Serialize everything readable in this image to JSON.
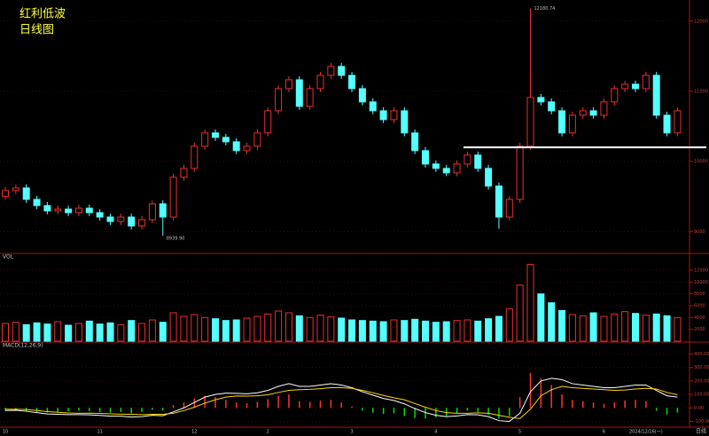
{
  "chart_data": {
    "type": "candlestick",
    "title": "红利低波",
    "subtitle": "日线图",
    "categories": [
      "10",
      null,
      null,
      null,
      null,
      null,
      null,
      null,
      null,
      "11",
      null,
      null,
      null,
      null,
      null,
      null,
      null,
      null,
      "12",
      null,
      null,
      null,
      null,
      null,
      null,
      "2",
      null,
      null,
      null,
      null,
      null,
      null,
      null,
      "3",
      null,
      null,
      null,
      null,
      null,
      null,
      null,
      "4",
      null,
      null,
      null,
      null,
      null,
      null,
      null,
      "5",
      null,
      null,
      null,
      null,
      null,
      null,
      null,
      "6",
      null,
      null,
      null,
      "2024/12/16(一)",
      null,
      null,
      null
    ],
    "open": [
      9500,
      9585,
      9622,
      9458,
      9370,
      9294,
      9319,
      9269,
      9332,
      9269,
      9206,
      9143,
      9206,
      9079,
      9168,
      9395,
      9206,
      9774,
      9900,
      10216,
      10406,
      10342,
      10279,
      10153,
      10216,
      10406,
      10721,
      11037,
      11163,
      10784,
      11037,
      11226,
      11353,
      11226,
      11037,
      10848,
      10721,
      10595,
      10721,
      10406,
      10153,
      9963,
      9900,
      9837,
      9963,
      10090,
      9900,
      9648,
      9206,
      9458,
      10216,
      10911,
      10848,
      10721,
      10406,
      10658,
      10721,
      10658,
      10848,
      11037,
      11100,
      11037,
      11226,
      10658,
      10406
    ],
    "high": [
      9635,
      9672,
      9672,
      9508,
      9420,
      9369,
      9369,
      9382,
      9382,
      9319,
      9256,
      9256,
      9256,
      9218,
      9445,
      9445,
      9824,
      9950,
      10266,
      10456,
      10456,
      10392,
      10329,
      10266,
      10456,
      10771,
      11087,
      11213,
      11213,
      11087,
      11276,
      11403,
      11403,
      11276,
      11087,
      10898,
      10771,
      10771,
      10771,
      10456,
      10203,
      10013,
      9950,
      10013,
      10140,
      10140,
      9950,
      9698,
      9508,
      10266,
      12180.74,
      10961,
      10898,
      10771,
      10708,
      10771,
      10771,
      10898,
      11087,
      11150,
      11150,
      11276,
      11276,
      10708,
      10771
    ],
    "low": [
      9450,
      9535,
      9408,
      9320,
      9244,
      9244,
      9219,
      9219,
      9219,
      9156,
      9093,
      9093,
      9029,
      9029,
      9118,
      8939.9,
      9156,
      9724,
      9850,
      10166,
      10292,
      10229,
      10103,
      10103,
      10166,
      10356,
      10671,
      10987,
      10734,
      10734,
      10987,
      11176,
      11176,
      10987,
      10798,
      10671,
      10545,
      10545,
      10356,
      10103,
      9913,
      9850,
      9787,
      9787,
      9913,
      9850,
      9598,
      9040,
      9156,
      9408,
      10166,
      10798,
      10671,
      10356,
      10356,
      10608,
      10608,
      10608,
      10798,
      10987,
      10987,
      10987,
      10608,
      10356,
      10356
    ],
    "close": [
      9585,
      9622,
      9458,
      9370,
      9294,
      9319,
      9269,
      9332,
      9269,
      9206,
      9143,
      9206,
      9079,
      9168,
      9395,
      9206,
      9774,
      9900,
      10216,
      10406,
      10342,
      10279,
      10153,
      10216,
      10406,
      10721,
      11037,
      11163,
      10784,
      11037,
      11226,
      11353,
      11226,
      11037,
      10848,
      10721,
      10595,
      10721,
      10406,
      10153,
      9963,
      9900,
      9837,
      9963,
      10090,
      9900,
      9648,
      9206,
      9458,
      10216,
      10911,
      10848,
      10721,
      10406,
      10658,
      10721,
      10658,
      10848,
      11037,
      11100,
      11037,
      11226,
      10658,
      10406,
      10721
    ],
    "up_color": "#e8302c",
    "down_color": "#54ffff",
    "ylim": [
      8700,
      12300
    ],
    "yticks": [
      9000,
      10000,
      11000,
      12000
    ],
    "high_label": "12180.74",
    "low_label": "8939.90",
    "hline": 10200,
    "hline_color": "#ffffff",
    "period_label": "日线",
    "volume": {
      "title": "VOL",
      "values": [
        3000,
        3200,
        2800,
        3100,
        2900,
        3300,
        2700,
        3000,
        3400,
        2900,
        3100,
        2800,
        3500,
        3000,
        3600,
        3200,
        4800,
        4200,
        4500,
        4000,
        3800,
        3500,
        3600,
        3900,
        4200,
        4600,
        5100,
        4800,
        4300,
        4000,
        4400,
        4100,
        3900,
        3600,
        3500,
        3400,
        3300,
        3600,
        3500,
        3700,
        3400,
        3200,
        3300,
        3500,
        3600,
        3400,
        3800,
        4200,
        5500,
        9500,
        13000,
        8000,
        6500,
        5200,
        4500,
        4300,
        4800,
        4200,
        4600,
        5000,
        4700,
        4400,
        4600,
        4300,
        4000
      ],
      "ylim": [
        0,
        13500
      ],
      "yticks": [
        2000,
        4000,
        6000,
        8000,
        10000,
        12000
      ]
    },
    "macd": {
      "title": "MACD(12,26,9)",
      "bars": [
        -20,
        -15,
        -25,
        -30,
        -35,
        -30,
        -25,
        -20,
        -25,
        -30,
        -35,
        -30,
        -40,
        -30,
        -15,
        -20,
        20,
        40,
        70,
        90,
        80,
        60,
        40,
        35,
        45,
        65,
        90,
        100,
        50,
        45,
        55,
        60,
        40,
        10,
        -20,
        -35,
        -45,
        -40,
        -60,
        -75,
        -80,
        -70,
        -60,
        -40,
        -20,
        -30,
        -50,
        -80,
        -60,
        80,
        260,
        220,
        170,
        100,
        60,
        50,
        40,
        30,
        40,
        55,
        60,
        50,
        -20,
        -50,
        -35
      ],
      "dif": [
        -20,
        -18,
        -25,
        -35,
        -45,
        -48,
        -50,
        -50,
        -52,
        -56,
        -62,
        -62,
        -68,
        -65,
        -55,
        -58,
        -30,
        0,
        40,
        80,
        100,
        110,
        108,
        105,
        112,
        130,
        160,
        180,
        160,
        160,
        170,
        180,
        170,
        150,
        120,
        95,
        70,
        55,
        30,
        -5,
        -35,
        -55,
        -65,
        -60,
        -50,
        -52,
        -65,
        -95,
        -100,
        -40,
        120,
        200,
        220,
        210,
        180,
        170,
        160,
        150,
        150,
        160,
        170,
        170,
        130,
        90,
        80
      ],
      "dea": [
        -10,
        -10.5,
        -12.5,
        -20,
        -27.5,
        -33,
        -37.5,
        -40,
        -39.5,
        -41,
        -44.5,
        -47,
        -48,
        -50,
        -47.5,
        -48,
        -40,
        -20,
        5,
        35,
        60,
        80,
        88,
        87.5,
        89.5,
        97.5,
        115,
        130,
        135,
        137.5,
        142.5,
        150,
        150,
        145,
        130,
        112.5,
        92.5,
        75,
        60,
        32.5,
        5,
        -20,
        -35,
        -40,
        -40,
        -37,
        -40,
        -55,
        -70,
        -80,
        -10,
        90,
        135,
        160,
        150,
        145,
        140,
        135,
        130,
        132.5,
        140,
        145,
        140,
        115,
        97.5
      ],
      "dif_color": "#ffffff",
      "dea_color": "#ffd700",
      "pos_color": "#ff3232",
      "neg_color": "#00e000",
      "ylim": [
        -130,
        430
      ],
      "yticks": [
        {
          "value": -100,
          "label": "-100.00"
        },
        {
          "value": 0,
          "label": "0.00"
        },
        {
          "value": 100,
          "label": "100.00"
        },
        {
          "value": 200,
          "label": "200.00"
        },
        {
          "value": 300,
          "label": "300.00"
        },
        {
          "value": 400,
          "label": "400.00"
        }
      ]
    }
  }
}
